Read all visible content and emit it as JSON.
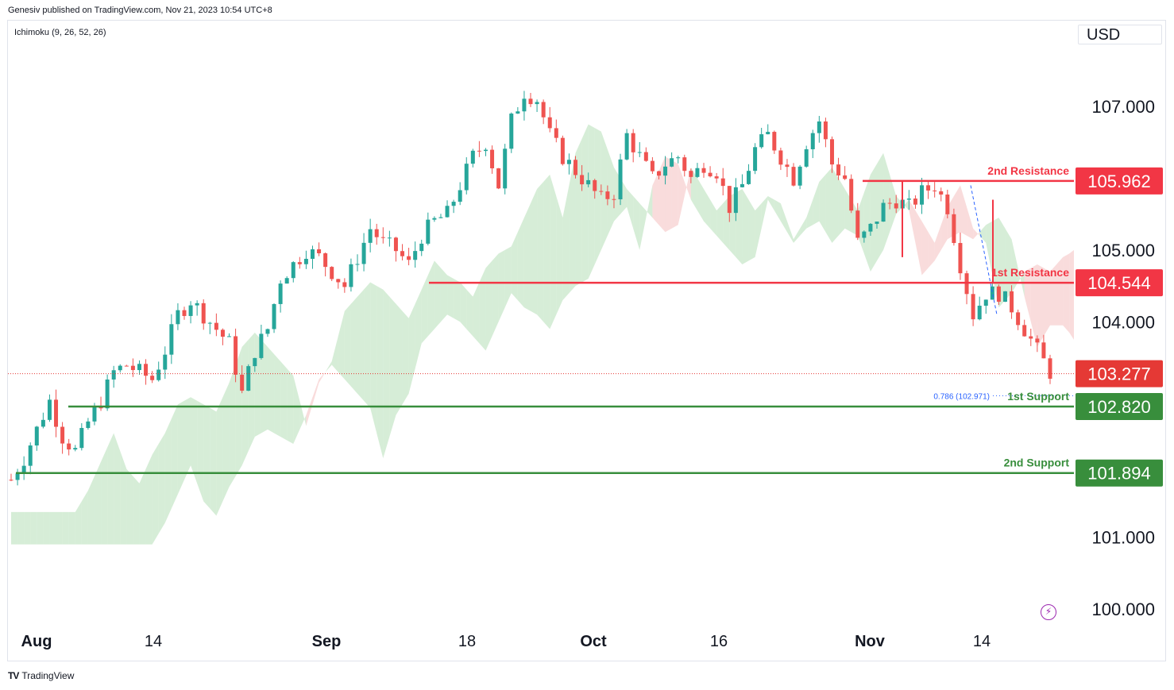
{
  "header": {
    "published": "Genesiv published on TradingView.com, Nov 21, 2023 10:54 UTC+8"
  },
  "indicator": {
    "label": "Ichimoku (9, 26, 52, 26)"
  },
  "currency": "USD",
  "footer": {
    "logo": "TV",
    "brand": "TradingView"
  },
  "icons": {
    "lightning": "lightning-icon",
    "logo": "tradingview-logo-icon"
  },
  "colors": {
    "up": "#26a69a",
    "down": "#ef5350",
    "resistance": "#f23645",
    "support": "#388e3c",
    "cloud_green": "#a5d6a7",
    "cloud_red": "#ef9a9a",
    "price_line": "#e53935",
    "fib": "#2962ff"
  },
  "chart_data": {
    "type": "candlestick",
    "yticks": [
      "107.000",
      "105.000",
      "104.000",
      "101.000",
      "100.000"
    ],
    "xticks": [
      "Aug",
      "14",
      "Sep",
      "18",
      "Oct",
      "16",
      "Nov",
      "14"
    ],
    "ylim": [
      99.6,
      107.9
    ],
    "current_price": 103.277,
    "levels": [
      {
        "label": "2nd Resistance",
        "value": 105.962,
        "kind": "resistance"
      },
      {
        "label": "1st Resistance",
        "value": 104.544,
        "kind": "resistance"
      },
      {
        "label": "1st Support",
        "value": 102.82,
        "kind": "support"
      },
      {
        "label": "2nd Support",
        "value": 101.894,
        "kind": "support"
      }
    ],
    "fib": {
      "label": "0.786 (102.971)",
      "value": 102.971
    },
    "price_path": [
      [
        0,
        101.8
      ],
      [
        2,
        102.1
      ],
      [
        4,
        102.5
      ],
      [
        6,
        102.9
      ],
      [
        8,
        102.4
      ],
      [
        10,
        102.2
      ],
      [
        12,
        102.6
      ],
      [
        14,
        102.9
      ],
      [
        16,
        103.3
      ],
      [
        18,
        103.4
      ],
      [
        20,
        103.3
      ],
      [
        22,
        103.2
      ],
      [
        24,
        103.6
      ],
      [
        26,
        104.1
      ],
      [
        28,
        104.3
      ],
      [
        30,
        104.1
      ],
      [
        32,
        103.9
      ],
      [
        34,
        103.7
      ],
      [
        36,
        103.0
      ],
      [
        38,
        103.6
      ],
      [
        40,
        103.9
      ],
      [
        42,
        104.6
      ],
      [
        44,
        104.8
      ],
      [
        46,
        105.0
      ],
      [
        48,
        104.9
      ],
      [
        50,
        104.7
      ],
      [
        52,
        104.5
      ],
      [
        54,
        104.9
      ],
      [
        56,
        105.3
      ],
      [
        58,
        105.1
      ],
      [
        60,
        105.0
      ],
      [
        62,
        104.8
      ],
      [
        64,
        105.2
      ],
      [
        66,
        105.4
      ],
      [
        68,
        105.5
      ],
      [
        70,
        105.9
      ],
      [
        72,
        106.3
      ],
      [
        74,
        106.5
      ],
      [
        76,
        105.9
      ],
      [
        78,
        106.8
      ],
      [
        80,
        107.2
      ],
      [
        82,
        107.1
      ],
      [
        84,
        106.6
      ],
      [
        86,
        106.3
      ],
      [
        88,
        106.1
      ],
      [
        90,
        105.9
      ],
      [
        92,
        105.7
      ],
      [
        94,
        105.8
      ],
      [
        96,
        106.6
      ],
      [
        98,
        106.3
      ],
      [
        100,
        106.0
      ],
      [
        102,
        106.2
      ],
      [
        104,
        106.3
      ],
      [
        106,
        106.0
      ],
      [
        108,
        106.2
      ],
      [
        110,
        106.1
      ],
      [
        112,
        105.6
      ],
      [
        114,
        105.9
      ],
      [
        116,
        106.4
      ],
      [
        118,
        106.6
      ],
      [
        120,
        106.3
      ],
      [
        122,
        106.0
      ],
      [
        124,
        106.5
      ],
      [
        126,
        106.8
      ],
      [
        128,
        106.2
      ],
      [
        130,
        106.0
      ],
      [
        132,
        105.1
      ],
      [
        134,
        105.3
      ],
      [
        136,
        105.6
      ],
      [
        138,
        105.7
      ],
      [
        140,
        105.6
      ],
      [
        142,
        105.8
      ],
      [
        144,
        105.9
      ],
      [
        146,
        105.6
      ],
      [
        148,
        104.8
      ],
      [
        150,
        104.1
      ],
      [
        152,
        104.4
      ],
      [
        154,
        104.4
      ],
      [
        156,
        104.2
      ],
      [
        158,
        103.9
      ],
      [
        160,
        103.6
      ],
      [
        162,
        103.3
      ]
    ]
  }
}
